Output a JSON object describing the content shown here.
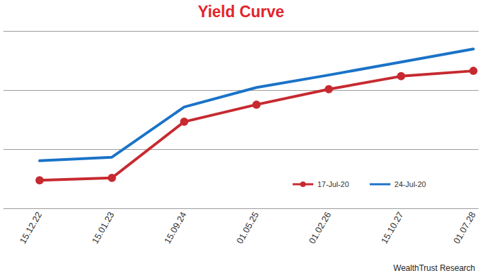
{
  "chart_data": {
    "type": "line",
    "title": "Yield Curve",
    "caption": "WealthTrust Research",
    "categories": [
      "15.12.22",
      "15.01.23",
      "15.09.24",
      "01.05.25",
      "01.02.26",
      "15.10.27",
      "01.07.28"
    ],
    "series": [
      {
        "name": "17-Jul-20",
        "color": "#c62a30",
        "marker": "circle",
        "values": [
          5.48,
          5.52,
          6.47,
          6.76,
          7.02,
          7.24,
          7.33
        ]
      },
      {
        "name": "24-Jul-20",
        "color": "#1a73c7",
        "marker": "none",
        "values": [
          5.81,
          5.87,
          6.72,
          7.05,
          7.26,
          7.48,
          7.7
        ]
      }
    ],
    "ylim": [
      5,
      8
    ],
    "yticks": [
      5,
      6,
      7,
      8
    ],
    "grid": true,
    "legend": "lower right",
    "tick_labels": "x"
  }
}
